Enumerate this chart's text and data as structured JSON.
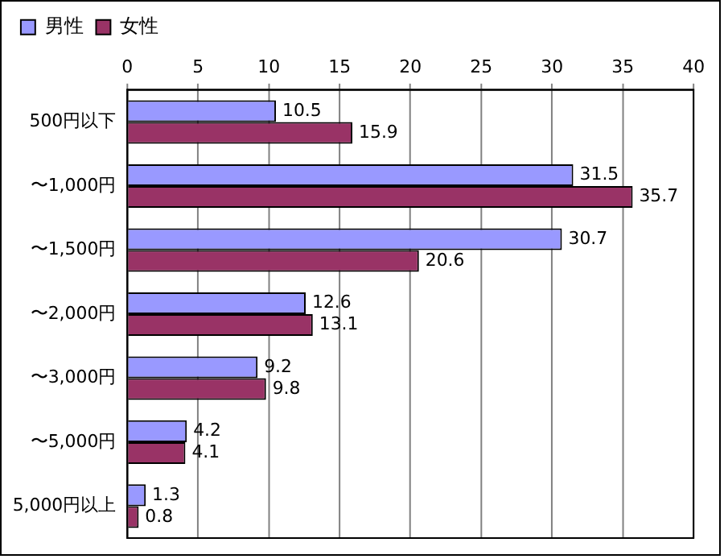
{
  "chart_data": {
    "type": "bar",
    "orientation": "horizontal",
    "categories": [
      "500円以下",
      "〜1,000円",
      "〜1,500円",
      "〜2,000円",
      "〜3,000円",
      "〜5,000円",
      "5,000円以上"
    ],
    "series": [
      {
        "name": "男性",
        "color": "#9999ff",
        "values": [
          10.5,
          31.5,
          30.7,
          12.6,
          9.2,
          4.2,
          1.3
        ]
      },
      {
        "name": "女性",
        "color": "#993366",
        "values": [
          15.9,
          35.7,
          20.6,
          13.1,
          9.8,
          4.1,
          0.8
        ]
      }
    ],
    "xlim": [
      0,
      40
    ],
    "xticks": [
      0,
      5,
      10,
      15,
      20,
      25,
      30,
      35,
      40
    ],
    "grid": "x",
    "legend": "top",
    "data_labels": true
  }
}
